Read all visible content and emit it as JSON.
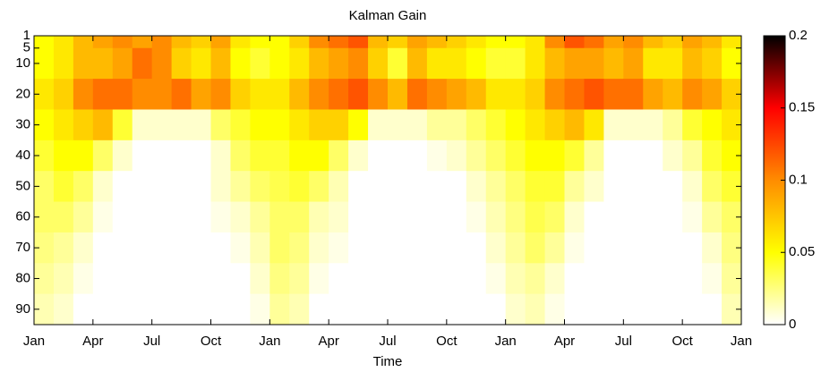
{
  "chart_data": {
    "type": "heatmap",
    "title": "Kalman Gain",
    "xlabel": "Time",
    "xlim": [
      0,
      36
    ],
    "xticks": [
      {
        "value": 0,
        "label": "Jan"
      },
      {
        "value": 3,
        "label": "Apr"
      },
      {
        "value": 6,
        "label": "Jul"
      },
      {
        "value": 9,
        "label": "Oct"
      },
      {
        "value": 12,
        "label": "Jan"
      },
      {
        "value": 15,
        "label": "Apr"
      },
      {
        "value": 18,
        "label": "Jul"
      },
      {
        "value": 21,
        "label": "Oct"
      },
      {
        "value": 24,
        "label": "Jan"
      },
      {
        "value": 27,
        "label": "Apr"
      },
      {
        "value": 30,
        "label": "Jul"
      },
      {
        "value": 33,
        "label": "Oct"
      },
      {
        "value": 36,
        "label": "Jan"
      }
    ],
    "ylim": [
      1,
      95
    ],
    "yticks": [
      1,
      5,
      10,
      20,
      30,
      40,
      50,
      60,
      70,
      80,
      90
    ],
    "y_edges": [
      1,
      5,
      15,
      25,
      35,
      45,
      55,
      65,
      75,
      85,
      95
    ],
    "clim": [
      0,
      0.2
    ],
    "cticks": [
      0,
      0.05,
      0.1,
      0.15,
      0.2
    ],
    "colormap": [
      "#ffffff",
      "#ffff00",
      "#ff8c00",
      "#ff0000",
      "#000000"
    ],
    "values": [
      [
        0.05,
        0.06,
        0.08,
        0.09,
        0.1,
        0.09,
        0.1,
        0.08,
        0.07,
        0.09,
        0.06,
        0.05,
        0.05,
        0.07,
        0.1,
        0.11,
        0.12,
        0.08,
        0.07,
        0.09,
        0.08,
        0.07,
        0.06,
        0.05,
        0.05,
        0.06,
        0.1,
        0.12,
        0.11,
        0.09,
        0.1,
        0.08,
        0.07,
        0.09,
        0.08,
        0.06
      ],
      [
        0.05,
        0.06,
        0.08,
        0.08,
        0.09,
        0.11,
        0.1,
        0.07,
        0.06,
        0.08,
        0.05,
        0.04,
        0.05,
        0.06,
        0.08,
        0.09,
        0.1,
        0.07,
        0.04,
        0.08,
        0.06,
        0.06,
        0.05,
        0.04,
        0.04,
        0.06,
        0.08,
        0.09,
        0.09,
        0.08,
        0.09,
        0.06,
        0.06,
        0.08,
        0.07,
        0.05
      ],
      [
        0.06,
        0.07,
        0.1,
        0.11,
        0.11,
        0.1,
        0.1,
        0.11,
        0.09,
        0.1,
        0.07,
        0.06,
        0.06,
        0.08,
        0.1,
        0.11,
        0.12,
        0.1,
        0.08,
        0.11,
        0.1,
        0.09,
        0.08,
        0.06,
        0.06,
        0.07,
        0.1,
        0.11,
        0.12,
        0.11,
        0.11,
        0.09,
        0.08,
        0.1,
        0.09,
        0.07
      ],
      [
        0.05,
        0.06,
        0.07,
        0.08,
        0.04,
        0.01,
        0.01,
        0.01,
        0.01,
        0.03,
        0.04,
        0.05,
        0.05,
        0.06,
        0.07,
        0.07,
        0.05,
        0.01,
        0.01,
        0.01,
        0.02,
        0.02,
        0.03,
        0.04,
        0.05,
        0.06,
        0.07,
        0.08,
        0.06,
        0.01,
        0.01,
        0.01,
        0.02,
        0.04,
        0.05,
        0.06
      ],
      [
        0.04,
        0.05,
        0.05,
        0.03,
        0.01,
        0,
        0,
        0,
        0,
        0.01,
        0.03,
        0.04,
        0.04,
        0.05,
        0.05,
        0.03,
        0.01,
        0,
        0,
        0,
        0.005,
        0.01,
        0.02,
        0.03,
        0.04,
        0.05,
        0.05,
        0.04,
        0.02,
        0,
        0,
        0,
        0.01,
        0.02,
        0.04,
        0.05
      ],
      [
        0.03,
        0.04,
        0.03,
        0.01,
        0,
        0,
        0,
        0,
        0,
        0.01,
        0.02,
        0.03,
        0.035,
        0.04,
        0.03,
        0.015,
        0,
        0,
        0,
        0,
        0,
        0,
        0.01,
        0.02,
        0.03,
        0.04,
        0.04,
        0.02,
        0.01,
        0,
        0,
        0,
        0,
        0.01,
        0.03,
        0.04
      ],
      [
        0.03,
        0.03,
        0.02,
        0.005,
        0,
        0,
        0,
        0,
        0,
        0.005,
        0.01,
        0.02,
        0.03,
        0.03,
        0.015,
        0.01,
        0,
        0,
        0,
        0,
        0,
        0,
        0.005,
        0.015,
        0.025,
        0.035,
        0.03,
        0.01,
        0,
        0,
        0,
        0,
        0,
        0.005,
        0.02,
        0.03
      ],
      [
        0.025,
        0.02,
        0.01,
        0,
        0,
        0,
        0,
        0,
        0,
        0,
        0.005,
        0.015,
        0.03,
        0.025,
        0.01,
        0.005,
        0,
        0,
        0,
        0,
        0,
        0,
        0,
        0.01,
        0.02,
        0.03,
        0.02,
        0.005,
        0,
        0,
        0,
        0,
        0,
        0,
        0.01,
        0.025
      ],
      [
        0.02,
        0.015,
        0.005,
        0,
        0,
        0,
        0,
        0,
        0,
        0,
        0,
        0.01,
        0.025,
        0.02,
        0.005,
        0,
        0,
        0,
        0,
        0,
        0,
        0,
        0,
        0.005,
        0.015,
        0.02,
        0.01,
        0,
        0,
        0,
        0,
        0,
        0,
        0,
        0.005,
        0.02
      ],
      [
        0.015,
        0.01,
        0,
        0,
        0,
        0,
        0,
        0,
        0,
        0,
        0,
        0.005,
        0.02,
        0.015,
        0,
        0,
        0,
        0,
        0,
        0,
        0,
        0,
        0,
        0,
        0.01,
        0.015,
        0.005,
        0,
        0,
        0,
        0,
        0,
        0,
        0,
        0,
        0.015
      ]
    ]
  }
}
